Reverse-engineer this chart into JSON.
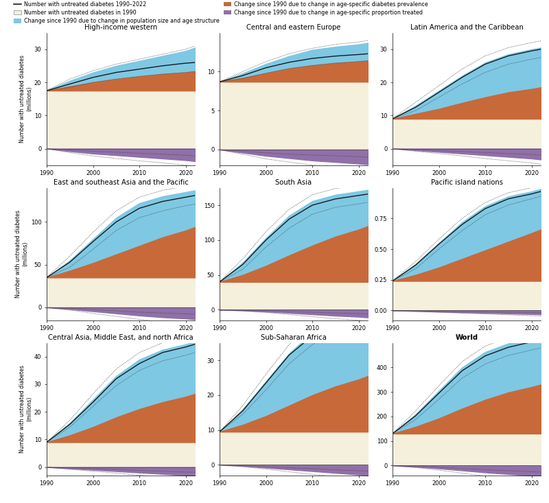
{
  "years": [
    1990,
    1995,
    2000,
    2005,
    2010,
    2015,
    2020,
    2022
  ],
  "world_bold": true,
  "panels": [
    {
      "name": "High-income western",
      "ylim": [
        -5,
        35
      ],
      "yticks": [
        0,
        10,
        20,
        30
      ],
      "baseline": 17.5,
      "orange_top": [
        17.5,
        18.8,
        20.0,
        21.0,
        21.8,
        22.5,
        23.0,
        23.3
      ],
      "blue_top": [
        17.5,
        20.5,
        23.0,
        25.0,
        26.5,
        28.0,
        29.5,
        30.5
      ],
      "main_line": [
        17.5,
        19.5,
        21.5,
        23.0,
        24.0,
        25.0,
        25.8,
        26.0
      ],
      "ci_upper": [
        17.5,
        21.0,
        23.5,
        25.5,
        27.0,
        28.5,
        30.0,
        31.0
      ],
      "ci_lower": [
        17.5,
        18.5,
        20.0,
        21.0,
        21.8,
        22.5,
        23.0,
        23.3
      ],
      "purple_val": [
        0,
        -0.8,
        -1.5,
        -2.0,
        -2.5,
        -3.0,
        -3.5,
        -3.8
      ],
      "purple_ci_upper": [
        0,
        -0.4,
        -0.8,
        -1.1,
        -1.4,
        -1.7,
        -2.0,
        -2.2
      ],
      "purple_ci_lower": [
        0,
        -1.2,
        -2.2,
        -3.0,
        -3.7,
        -4.3,
        -5.0,
        -5.3
      ]
    },
    {
      "name": "Central and eastern Europe",
      "ylim": [
        -2,
        15
      ],
      "yticks": [
        0,
        5,
        10
      ],
      "baseline": 8.7,
      "orange_top": [
        8.7,
        9.2,
        9.8,
        10.4,
        10.8,
        11.1,
        11.3,
        11.4
      ],
      "blue_top": [
        8.7,
        9.8,
        11.0,
        12.0,
        12.8,
        13.2,
        13.5,
        13.7
      ],
      "main_line": [
        8.7,
        9.5,
        10.5,
        11.2,
        11.7,
        12.0,
        12.2,
        12.3
      ],
      "ci_upper": [
        8.7,
        10.0,
        11.3,
        12.3,
        13.0,
        13.5,
        13.8,
        14.0
      ],
      "ci_lower": [
        8.7,
        9.1,
        9.8,
        10.4,
        10.8,
        11.1,
        11.3,
        11.4
      ],
      "purple_val": [
        0,
        -0.4,
        -0.8,
        -1.1,
        -1.4,
        -1.6,
        -1.8,
        -1.9
      ],
      "purple_ci_upper": [
        0,
        -0.2,
        -0.4,
        -0.6,
        -0.7,
        -0.8,
        -0.9,
        -1.0
      ],
      "purple_ci_lower": [
        0,
        -0.6,
        -1.2,
        -1.6,
        -2.0,
        -2.3,
        -2.6,
        -2.8
      ]
    },
    {
      "name": "Latin America and the Caribbean",
      "ylim": [
        -5,
        35
      ],
      "yticks": [
        0,
        10,
        20,
        30
      ],
      "baseline": 9.0,
      "orange_top": [
        9.0,
        10.5,
        12.0,
        13.8,
        15.5,
        17.0,
        18.0,
        18.5
      ],
      "blue_top": [
        9.0,
        13.0,
        17.5,
        22.0,
        26.0,
        28.5,
        30.0,
        30.5
      ],
      "main_line": [
        9.0,
        12.5,
        17.0,
        21.5,
        25.5,
        28.0,
        29.5,
        30.0
      ],
      "ci_upper": [
        9.0,
        14.0,
        19.0,
        24.0,
        28.0,
        30.5,
        32.0,
        32.5
      ],
      "ci_lower": [
        9.0,
        11.5,
        15.5,
        19.5,
        23.0,
        25.5,
        27.0,
        27.5
      ],
      "purple_val": [
        0,
        -0.5,
        -1.0,
        -1.5,
        -2.0,
        -2.5,
        -3.0,
        -3.3
      ],
      "purple_ci_upper": [
        0,
        -0.3,
        -0.6,
        -0.9,
        -1.2,
        -1.5,
        -1.8,
        -2.0
      ],
      "purple_ci_lower": [
        0,
        -0.8,
        -1.5,
        -2.2,
        -3.0,
        -3.7,
        -4.3,
        -4.7
      ]
    },
    {
      "name": "East and southeast Asia and the Pacific",
      "ylim": [
        -15,
        140
      ],
      "yticks": [
        0,
        50,
        100
      ],
      "baseline": 35.0,
      "orange_top": [
        35.0,
        43.0,
        52.0,
        62.0,
        72.0,
        82.0,
        90.0,
        94.0
      ],
      "blue_top": [
        35.0,
        55.0,
        80.0,
        105.0,
        122.0,
        130.0,
        135.0,
        137.0
      ],
      "main_line": [
        35.0,
        53.0,
        77.0,
        100.0,
        116.0,
        124.0,
        129.0,
        131.0
      ],
      "ci_upper": [
        35.0,
        60.0,
        88.0,
        113.0,
        129.0,
        137.0,
        142.0,
        144.0
      ],
      "ci_lower": [
        35.0,
        47.0,
        68.0,
        90.0,
        105.0,
        113.0,
        119.0,
        121.0
      ],
      "purple_val": [
        0,
        -2.0,
        -4.5,
        -7.0,
        -9.5,
        -11.5,
        -13.0,
        -14.0
      ],
      "purple_ci_upper": [
        0,
        -1.0,
        -2.5,
        -4.0,
        -5.5,
        -6.5,
        -7.5,
        -8.0
      ],
      "purple_ci_lower": [
        0,
        -3.0,
        -7.0,
        -10.5,
        -14.0,
        -17.0,
        -19.0,
        -20.5
      ]
    },
    {
      "name": "South Asia",
      "ylim": [
        -15,
        175
      ],
      "yticks": [
        0,
        50,
        100,
        150
      ],
      "baseline": 40.0,
      "orange_top": [
        40.0,
        50.0,
        63.0,
        78.0,
        92.0,
        105.0,
        115.0,
        120.0
      ],
      "blue_top": [
        40.0,
        68.0,
        103.0,
        135.0,
        156.0,
        165.0,
        170.0,
        172.0
      ],
      "main_line": [
        40.0,
        65.0,
        100.0,
        130.0,
        150.0,
        159.0,
        164.0,
        166.0
      ],
      "ci_upper": [
        40.0,
        73.0,
        112.0,
        144.0,
        165.0,
        174.0,
        178.0,
        179.0
      ],
      "ci_lower": [
        40.0,
        58.0,
        90.0,
        117.0,
        137.0,
        147.0,
        152.0,
        154.0
      ],
      "purple_val": [
        0,
        -1.0,
        -2.5,
        -4.5,
        -6.5,
        -8.5,
        -10.0,
        -11.0
      ],
      "purple_ci_upper": [
        0,
        -0.5,
        -1.3,
        -2.4,
        -3.5,
        -4.6,
        -5.5,
        -6.0
      ],
      "purple_ci_lower": [
        0,
        -1.5,
        -3.8,
        -6.8,
        -9.8,
        -12.8,
        -15.0,
        -16.5
      ]
    },
    {
      "name": "Pacific island nations",
      "ylim": [
        -0.08,
        1.0
      ],
      "yticks": [
        0.0,
        0.25,
        0.5,
        0.75
      ],
      "baseline": 0.24,
      "orange_top": [
        0.24,
        0.29,
        0.35,
        0.42,
        0.49,
        0.56,
        0.63,
        0.66
      ],
      "blue_top": [
        0.24,
        0.38,
        0.55,
        0.72,
        0.85,
        0.93,
        0.97,
        0.99
      ],
      "main_line": [
        0.24,
        0.37,
        0.54,
        0.7,
        0.83,
        0.91,
        0.95,
        0.97
      ],
      "ci_upper": [
        0.24,
        0.4,
        0.58,
        0.75,
        0.88,
        0.96,
        1.0,
        1.02
      ],
      "ci_lower": [
        0.24,
        0.34,
        0.5,
        0.65,
        0.78,
        0.86,
        0.91,
        0.93
      ],
      "purple_val": [
        0,
        -0.005,
        -0.01,
        -0.015,
        -0.02,
        -0.025,
        -0.03,
        -0.032
      ],
      "purple_ci_upper": [
        0,
        -0.003,
        -0.006,
        -0.009,
        -0.012,
        -0.015,
        -0.018,
        -0.019
      ],
      "purple_ci_lower": [
        0,
        -0.008,
        -0.015,
        -0.022,
        -0.029,
        -0.036,
        -0.043,
        -0.046
      ]
    },
    {
      "name": "Central Asia, Middle East, and north Africa",
      "ylim": [
        -3,
        45
      ],
      "yticks": [
        0,
        10,
        20,
        30,
        40
      ],
      "baseline": 9.0,
      "orange_top": [
        9.0,
        11.5,
        14.5,
        18.0,
        21.0,
        23.5,
        25.5,
        26.5
      ],
      "blue_top": [
        9.0,
        16.0,
        24.5,
        33.0,
        39.0,
        42.5,
        44.5,
        45.5
      ],
      "main_line": [
        9.0,
        15.5,
        23.5,
        32.0,
        37.5,
        41.5,
        43.5,
        44.5
      ],
      "ci_upper": [
        9.0,
        17.0,
        26.5,
        35.5,
        41.5,
        45.0,
        47.0,
        48.0
      ],
      "ci_lower": [
        9.0,
        14.5,
        22.0,
        29.5,
        35.0,
        38.5,
        40.5,
        41.5
      ],
      "purple_val": [
        0,
        -0.5,
        -1.0,
        -1.5,
        -2.0,
        -2.5,
        -3.0,
        -3.2
      ],
      "purple_ci_upper": [
        0,
        -0.3,
        -0.6,
        -0.9,
        -1.2,
        -1.5,
        -1.8,
        -1.9
      ],
      "purple_ci_lower": [
        0,
        -0.8,
        -1.5,
        -2.2,
        -3.0,
        -3.6,
        -4.2,
        -4.5
      ]
    },
    {
      "name": "Sub-Saharan Africa",
      "ylim": [
        -3,
        35
      ],
      "yticks": [
        0,
        10,
        20,
        30
      ],
      "baseline": 9.5,
      "orange_top": [
        9.5,
        11.5,
        14.0,
        17.0,
        20.0,
        22.5,
        24.5,
        25.5
      ],
      "blue_top": [
        9.5,
        16.0,
        24.0,
        32.0,
        38.0,
        41.5,
        43.5,
        44.5
      ],
      "main_line": [
        9.5,
        15.5,
        23.5,
        31.5,
        37.0,
        40.5,
        42.5,
        43.5
      ],
      "ci_upper": [
        9.5,
        17.0,
        26.0,
        34.5,
        40.5,
        44.0,
        46.0,
        47.0
      ],
      "ci_lower": [
        9.5,
        14.5,
        21.5,
        29.0,
        34.5,
        38.0,
        40.0,
        41.0
      ],
      "purple_val": [
        0,
        -0.3,
        -0.8,
        -1.3,
        -1.8,
        -2.3,
        -2.8,
        -3.0
      ],
      "purple_ci_upper": [
        0,
        -0.2,
        -0.5,
        -0.8,
        -1.1,
        -1.4,
        -1.7,
        -1.8
      ],
      "purple_ci_lower": [
        0,
        -0.5,
        -1.2,
        -2.0,
        -2.7,
        -3.4,
        -4.0,
        -4.3
      ]
    },
    {
      "name": "World",
      "ylim": [
        -40,
        500
      ],
      "yticks": [
        0,
        100,
        200,
        300,
        400
      ],
      "baseline": 130.0,
      "orange_top": [
        130.0,
        158.0,
        192.0,
        232.0,
        268.0,
        298.0,
        320.0,
        330.0
      ],
      "blue_top": [
        130.0,
        210.0,
        305.0,
        400.0,
        463.0,
        498.0,
        520.0,
        528.0
      ],
      "main_line": [
        130.0,
        203.0,
        295.0,
        386.0,
        447.0,
        482.0,
        504.0,
        512.0
      ],
      "ci_upper": [
        130.0,
        223.0,
        325.0,
        423.0,
        487.0,
        521.0,
        543.0,
        551.0
      ],
      "ci_lower": [
        130.0,
        188.0,
        270.0,
        356.0,
        414.0,
        449.0,
        471.0,
        479.0
      ],
      "purple_val": [
        0,
        -5.0,
        -12.0,
        -20.0,
        -28.0,
        -35.0,
        -41.0,
        -44.0
      ],
      "purple_ci_upper": [
        0,
        -3.0,
        -7.0,
        -12.0,
        -17.0,
        -21.0,
        -25.0,
        -27.0
      ],
      "purple_ci_lower": [
        0,
        -8.0,
        -19.0,
        -31.0,
        -43.0,
        -53.0,
        -62.0,
        -67.0
      ]
    }
  ],
  "colors": {
    "blue": "#7EC8E3",
    "orange": "#C8693A",
    "purple": "#9070A8",
    "cream": "#F5F0DC",
    "line": "#1A1A1A",
    "dot_line": "#404040"
  },
  "legend": {
    "line_label": "Number with untreated diabetes 1990–2022",
    "cream_label": "Number with untreated diabetes in 1990",
    "blue_label": "Change since 1990 due to change in population size and age structure",
    "orange_label": "Change since 1990 due to change in age-specific diabetes prevalence",
    "purple_label": "Change since 1990 due to change in age-specific proportion treated"
  }
}
